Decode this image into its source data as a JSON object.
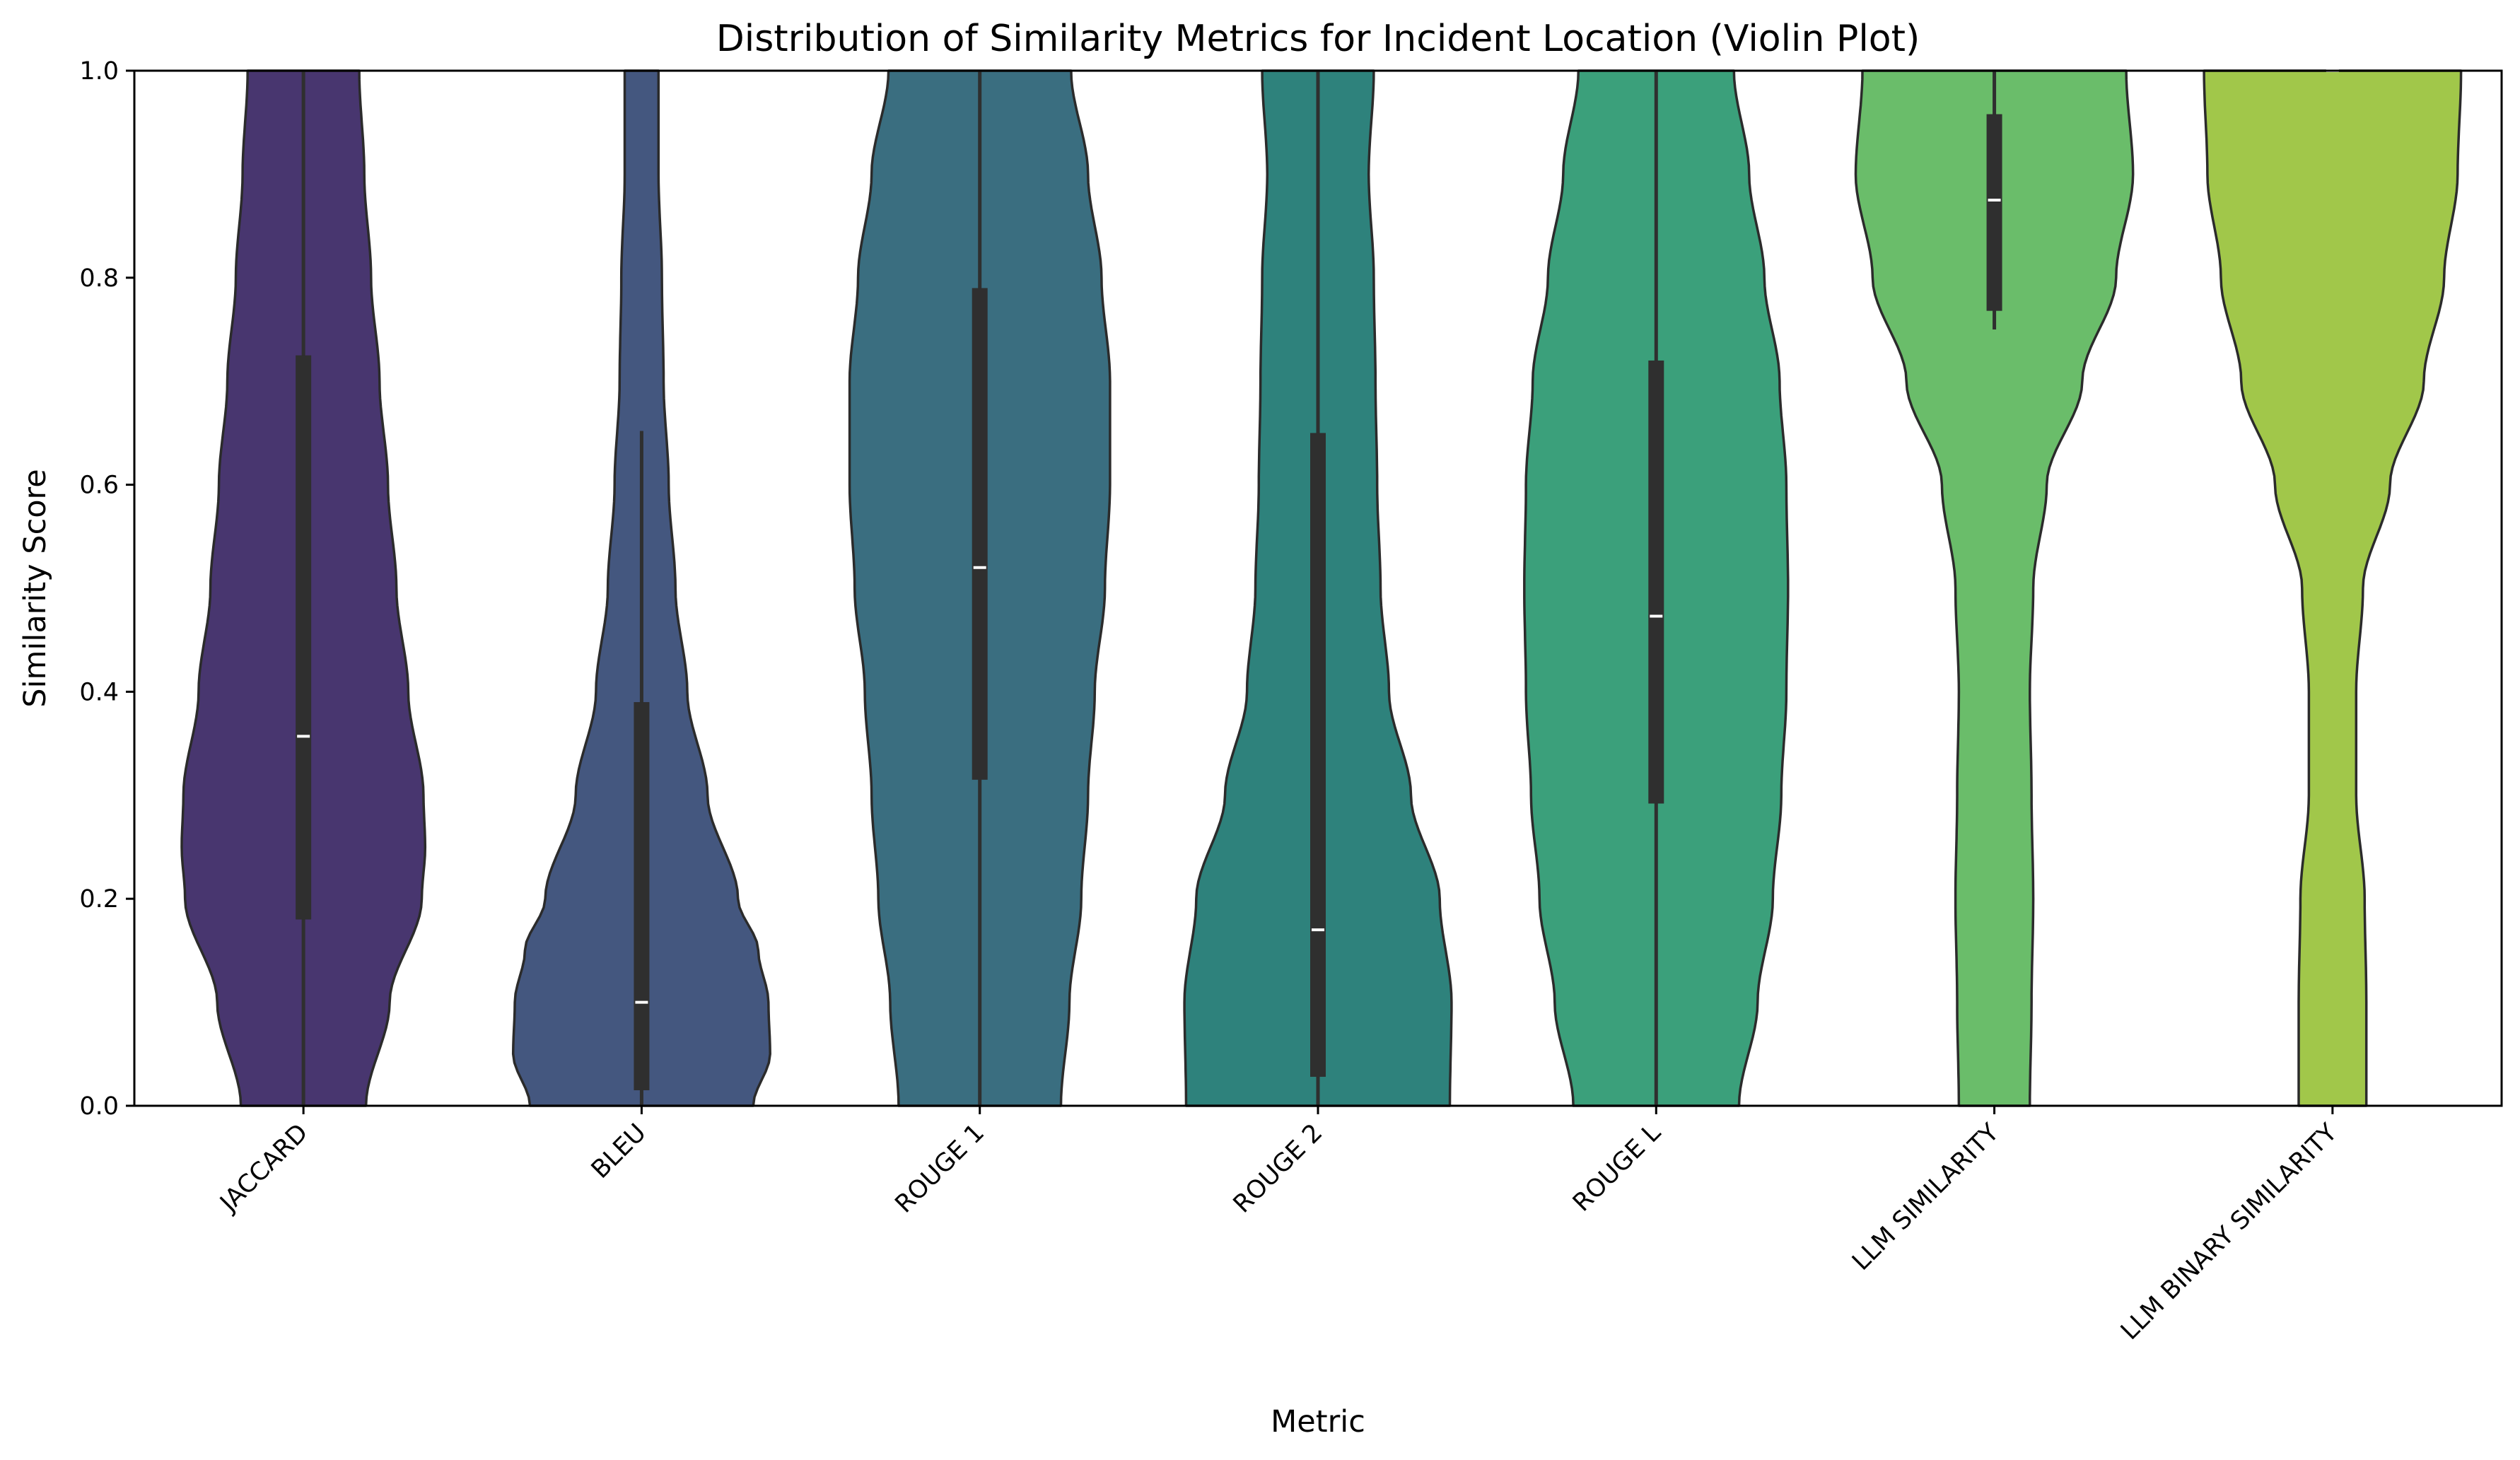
{
  "chart_data": {
    "type": "violin",
    "title": "Distribution of Similarity Metrics for Incident Location (Violin Plot)",
    "xlabel": "Metric",
    "ylabel": "Similarity Score",
    "ylim": [
      0,
      1
    ],
    "yticks": [
      "0.0",
      "0.2",
      "0.4",
      "0.6",
      "0.8",
      "1.0"
    ],
    "grid": false,
    "legend": "none",
    "categories": [
      "JACCARD",
      "BLEU",
      "ROUGE 1",
      "ROUGE 2",
      "ROUGE L",
      "LLM SIMILARITY",
      "LLM BINARY SIMILARITY"
    ],
    "violins": [
      {
        "category": "JACCARD",
        "color": "#48366f",
        "median": 0.357,
        "q1": 0.18,
        "q3": 0.725,
        "whisker_low": 0.0,
        "whisker_high": 1.0,
        "density": [
          [
            0,
            0.37
          ],
          [
            0.1,
            0.51
          ],
          [
            0.2,
            0.7
          ],
          [
            0.25,
            0.72
          ],
          [
            0.3,
            0.71
          ],
          [
            0.4,
            0.62
          ],
          [
            0.5,
            0.55
          ],
          [
            0.6,
            0.5
          ],
          [
            0.7,
            0.45
          ],
          [
            0.8,
            0.4
          ],
          [
            0.9,
            0.36
          ],
          [
            1.0,
            0.33
          ]
        ]
      },
      {
        "category": "BLEU",
        "color": "#44577f",
        "median": 0.1,
        "q1": 0.015,
        "q3": 0.39,
        "whisker_low": 0.0,
        "whisker_high": 0.652,
        "density": [
          [
            0,
            0.66
          ],
          [
            0.05,
            0.76
          ],
          [
            0.1,
            0.75
          ],
          [
            0.15,
            0.69
          ],
          [
            0.2,
            0.57
          ],
          [
            0.3,
            0.39
          ],
          [
            0.4,
            0.27
          ],
          [
            0.5,
            0.2
          ],
          [
            0.6,
            0.16
          ],
          [
            0.7,
            0.13
          ],
          [
            0.8,
            0.12
          ],
          [
            0.9,
            0.1
          ],
          [
            1.0,
            0.1
          ]
        ]
      },
      {
        "category": "ROUGE 1",
        "color": "#3a6e80",
        "median": 0.52,
        "q1": 0.315,
        "q3": 0.79,
        "whisker_low": 0.0,
        "whisker_high": 1.0,
        "density": [
          [
            0,
            0.48
          ],
          [
            0.1,
            0.53
          ],
          [
            0.2,
            0.6
          ],
          [
            0.3,
            0.64
          ],
          [
            0.4,
            0.68
          ],
          [
            0.5,
            0.74
          ],
          [
            0.6,
            0.77
          ],
          [
            0.7,
            0.77
          ],
          [
            0.8,
            0.72
          ],
          [
            0.9,
            0.64
          ],
          [
            1.0,
            0.54
          ]
        ]
      },
      {
        "category": "ROUGE 2",
        "color": "#2e827c",
        "median": 0.17,
        "q1": 0.028,
        "q3": 0.65,
        "whisker_low": 0.0,
        "whisker_high": 1.0,
        "density": [
          [
            0,
            0.78
          ],
          [
            0.1,
            0.79
          ],
          [
            0.2,
            0.72
          ],
          [
            0.3,
            0.55
          ],
          [
            0.4,
            0.42
          ],
          [
            0.5,
            0.37
          ],
          [
            0.6,
            0.35
          ],
          [
            0.7,
            0.34
          ],
          [
            0.8,
            0.33
          ],
          [
            0.9,
            0.3
          ],
          [
            1.0,
            0.33
          ]
        ]
      },
      {
        "category": "ROUGE L",
        "color": "#3ba07b",
        "median": 0.473,
        "q1": 0.292,
        "q3": 0.72,
        "whisker_low": 0.0,
        "whisker_high": 1.0,
        "density": [
          [
            0,
            0.49
          ],
          [
            0.1,
            0.6
          ],
          [
            0.2,
            0.69
          ],
          [
            0.3,
            0.74
          ],
          [
            0.4,
            0.77
          ],
          [
            0.5,
            0.78
          ],
          [
            0.6,
            0.77
          ],
          [
            0.7,
            0.73
          ],
          [
            0.8,
            0.64
          ],
          [
            0.9,
            0.55
          ],
          [
            1.0,
            0.46
          ]
        ]
      },
      {
        "category": "LLM SIMILARITY",
        "color": "#6abd6a",
        "median": 0.875,
        "q1": 0.768,
        "q3": 0.958,
        "whisker_low": 0.75,
        "whisker_high": 1.0,
        "density": [
          [
            0,
            0.21
          ],
          [
            0.1,
            0.22
          ],
          [
            0.2,
            0.23
          ],
          [
            0.3,
            0.22
          ],
          [
            0.4,
            0.21
          ],
          [
            0.5,
            0.23
          ],
          [
            0.6,
            0.31
          ],
          [
            0.7,
            0.52
          ],
          [
            0.8,
            0.72
          ],
          [
            0.9,
            0.82
          ],
          [
            1.0,
            0.78
          ]
        ]
      },
      {
        "category": "LLM BINARY SIMILARITY",
        "color": "#a1c74a",
        "median": 1.0,
        "q1": 1.0,
        "q3": 1.0,
        "whisker_low": 1.0,
        "whisker_high": 1.0,
        "density": [
          [
            0,
            0.2
          ],
          [
            0.1,
            0.2
          ],
          [
            0.2,
            0.19
          ],
          [
            0.3,
            0.14
          ],
          [
            0.4,
            0.14
          ],
          [
            0.5,
            0.18
          ],
          [
            0.6,
            0.34
          ],
          [
            0.7,
            0.54
          ],
          [
            0.8,
            0.66
          ],
          [
            0.9,
            0.74
          ],
          [
            1.0,
            0.76
          ]
        ]
      }
    ]
  }
}
